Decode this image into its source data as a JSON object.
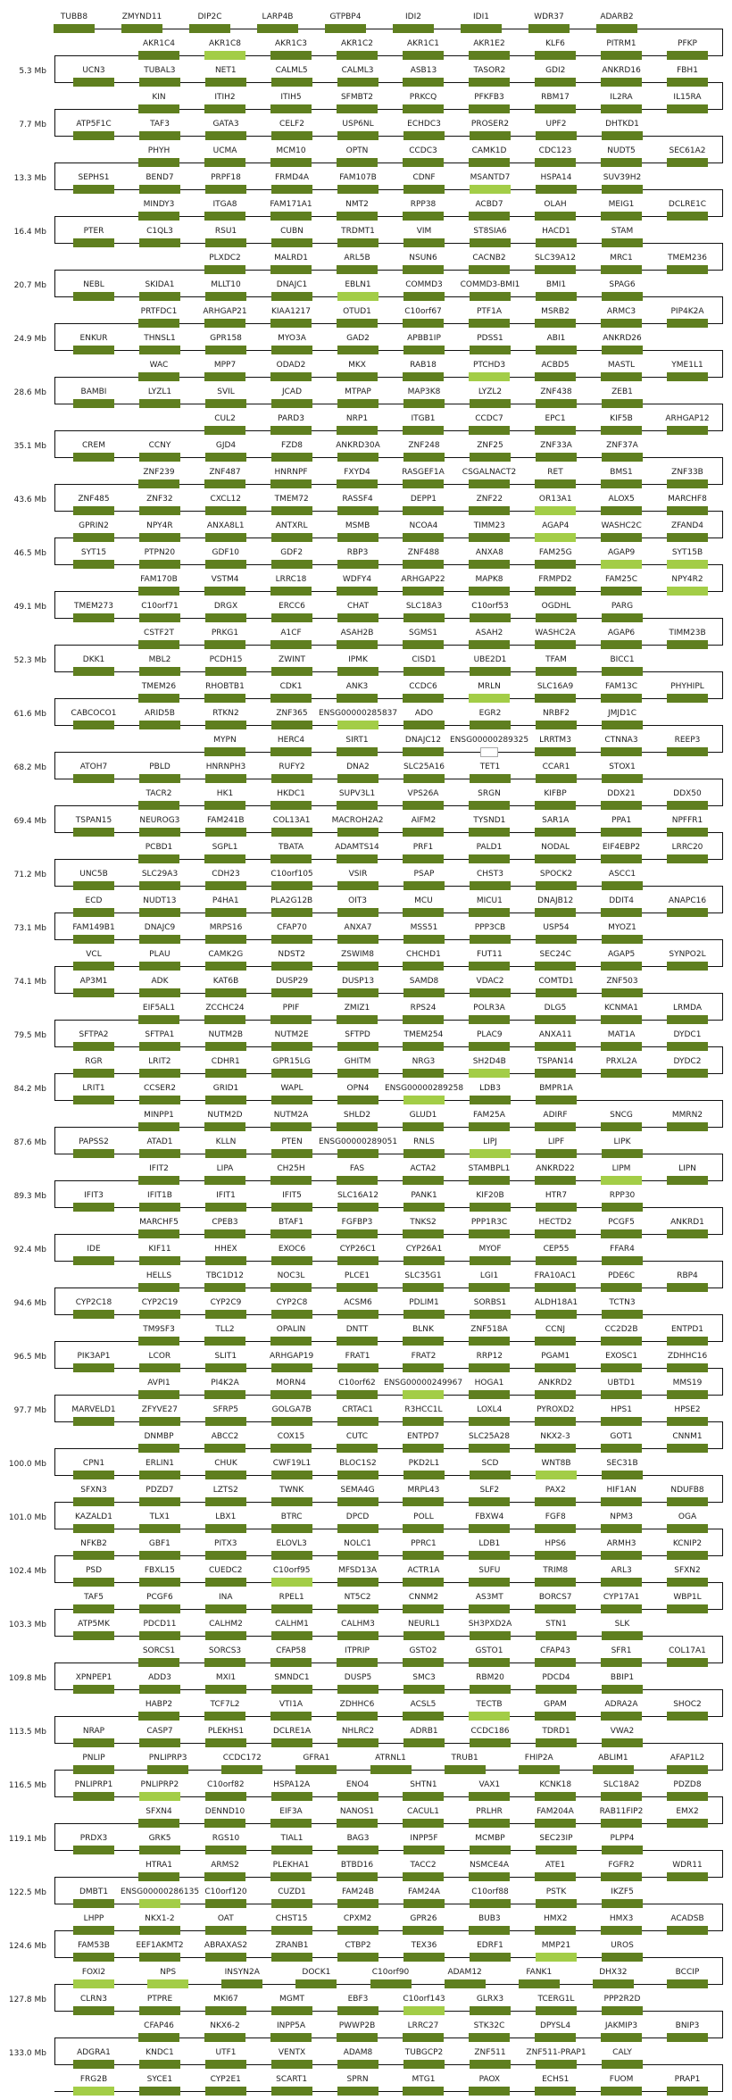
{
  "colors": {
    "gene": "#5f7f1f",
    "highlight": "#a3cd47",
    "unfilled_border": "#aaaaaa",
    "line": "#111111"
  },
  "highlighted": [
    "AKR1C8",
    "MSANTD7",
    "EBLN1",
    "PTCHD3",
    "OR13A1",
    "AGAP4",
    "AGAP9",
    "SYT15B",
    "NPY4R2",
    "MRLN",
    "ENSG00000285837",
    "SH2D4B",
    "ENSG00000289258",
    "LIPJ",
    "LIPM",
    "ENSG00000249967",
    "WNT8B",
    "C10orf95",
    "TECTB",
    "PNLIPRP2",
    "ENSG00000286135",
    "MMP21",
    "FOXI2",
    "NPS",
    "C10orf143",
    "FRG2B"
  ],
  "unfilled": [
    "ENSG00000289325"
  ],
  "rows": [
    {
      "genes": [
        "TUBB8",
        "ZMYND11",
        "DIP2C",
        "LARP4B",
        "GTPBP4",
        "IDI2",
        "IDI1",
        "WDR37",
        "ADARB2"
      ]
    },
    {
      "genes": [
        "AKR1C4",
        "AKR1C8",
        "AKR1C3",
        "AKR1C2",
        "AKR1C1",
        "AKR1E2",
        "KLF6",
        "PITRM1",
        "PFKP"
      ]
    },
    {
      "mb": "5.3 Mb",
      "genes": [
        "UCN3",
        "TUBAL3",
        "NET1",
        "CALML5",
        "CALML3",
        "ASB13",
        "TASOR2",
        "GDI2",
        "ANKRD16",
        "FBH1"
      ]
    },
    {
      "genes": [
        "KIN",
        "ITIH2",
        "ITIH5",
        "SFMBT2",
        "PRKCQ",
        "PFKFB3",
        "RBM17",
        "IL2RA",
        "IL15RA"
      ]
    },
    {
      "mb": "7.7 Mb",
      "genes": [
        "ATP5F1C",
        "TAF3",
        "GATA3",
        "CELF2",
        "USP6NL",
        "ECHDC3",
        "PROSER2",
        "UPF2",
        "DHTKD1"
      ]
    },
    {
      "genes": [
        "PHYH",
        "UCMA",
        "MCM10",
        "OPTN",
        "CCDC3",
        "CAMK1D",
        "CDC123",
        "NUDT5",
        "SEC61A2"
      ]
    },
    {
      "mb": "13.3 Mb",
      "genes": [
        "SEPHS1",
        "BEND7",
        "PRPF18",
        "FRMD4A",
        "FAM107B",
        "CDNF",
        "MSANTD7",
        "HSPA14",
        "SUV39H2"
      ]
    },
    {
      "genes": [
        "MINDY3",
        "ITGA8",
        "FAM171A1",
        "NMT2",
        "RPP38",
        "ACBD7",
        "OLAH",
        "MEIG1",
        "DCLRE1C"
      ]
    },
    {
      "mb": "16.4 Mb",
      "genes": [
        "PTER",
        "C1QL3",
        "RSU1",
        "CUBN",
        "TRDMT1",
        "VIM",
        "ST8SIA6",
        "HACD1",
        "STAM"
      ]
    },
    {
      "genes": [
        "PLXDC2",
        "MALRD1",
        "ARL5B",
        "NSUN6",
        "CACNB2",
        "SLC39A12",
        "MRC1",
        "TMEM236"
      ]
    },
    {
      "mb": "20.7 Mb",
      "genes": [
        "NEBL",
        "SKIDA1",
        "MLLT10",
        "DNAJC1",
        "EBLN1",
        "COMMD3",
        "COMMD3-BMI1",
        "BMI1",
        "SPAG6"
      ]
    },
    {
      "genes": [
        "PRTFDC1",
        "ARHGAP21",
        "KIAA1217",
        "OTUD1",
        "C10orf67",
        "PTF1A",
        "MSRB2",
        "ARMC3",
        "PIP4K2A"
      ]
    },
    {
      "mb": "24.9 Mb",
      "genes": [
        "ENKUR",
        "THNSL1",
        "GPR158",
        "MYO3A",
        "GAD2",
        "APBB1IP",
        "PDSS1",
        "ABI1",
        "ANKRD26"
      ]
    },
    {
      "genes": [
        "WAC",
        "MPP7",
        "ODAD2",
        "MKX",
        "RAB18",
        "PTCHD3",
        "ACBD5",
        "MASTL",
        "YME1L1"
      ]
    },
    {
      "mb": "28.6 Mb",
      "genes": [
        "BAMBI",
        "LYZL1",
        "SVIL",
        "JCAD",
        "MTPAP",
        "MAP3K8",
        "LYZL2",
        "ZNF438",
        "ZEB1"
      ]
    },
    {
      "genes": [
        "CUL2",
        "PARD3",
        "NRP1",
        "ITGB1",
        "CCDC7",
        "EPC1",
        "KIF5B",
        "ARHGAP12"
      ]
    },
    {
      "mb": "35.1 Mb",
      "genes": [
        "CREM",
        "CCNY",
        "GJD4",
        "FZD8",
        "ANKRD30A",
        "ZNF248",
        "ZNF25",
        "ZNF33A",
        "ZNF37A"
      ]
    },
    {
      "genes": [
        "ZNF239",
        "ZNF487",
        "HNRNPF",
        "FXYD4",
        "RASGEF1A",
        "CSGALNACT2",
        "RET",
        "BMS1",
        "ZNF33B"
      ]
    },
    {
      "mb": "43.6 Mb",
      "genes": [
        "ZNF485",
        "ZNF32",
        "CXCL12",
        "TMEM72",
        "RASSF4",
        "DEPP1",
        "ZNF22",
        "OR13A1",
        "ALOX5",
        "MARCHF8"
      ]
    },
    {
      "genes": [
        "GPRIN2",
        "NPY4R",
        "ANXA8L1",
        "ANTXRL",
        "MSMB",
        "NCOA4",
        "TIMM23",
        "AGAP4",
        "WASHC2C",
        "ZFAND4"
      ]
    },
    {
      "mb": "46.5 Mb",
      "genes": [
        "SYT15",
        "PTPN20",
        "GDF10",
        "GDF2",
        "RBP3",
        "ZNF488",
        "ANXA8",
        "FAM25G",
        "AGAP9",
        "SYT15B"
      ]
    },
    {
      "genes": [
        "FAM170B",
        "VSTM4",
        "LRRC18",
        "WDFY4",
        "ARHGAP22",
        "MAPK8",
        "FRMPD2",
        "FAM25C",
        "NPY4R2"
      ]
    },
    {
      "mb": "49.1 Mb",
      "genes": [
        "TMEM273",
        "C10orf71",
        "DRGX",
        "ERCC6",
        "CHAT",
        "SLC18A3",
        "C10orf53",
        "OGDHL",
        "PARG"
      ]
    },
    {
      "genes": [
        "CSTF2T",
        "PRKG1",
        "A1CF",
        "ASAH2B",
        "SGMS1",
        "ASAH2",
        "WASHC2A",
        "AGAP6",
        "TIMM23B"
      ]
    },
    {
      "mb": "52.3 Mb",
      "genes": [
        "DKK1",
        "MBL2",
        "PCDH15",
        "ZWINT",
        "IPMK",
        "CISD1",
        "UBE2D1",
        "TFAM",
        "BICC1"
      ]
    },
    {
      "genes": [
        "TMEM26",
        "RHOBTB1",
        "CDK1",
        "ANK3",
        "CCDC6",
        "MRLN",
        "SLC16A9",
        "FAM13C",
        "PHYHIPL"
      ]
    },
    {
      "mb": "61.6 Mb",
      "genes": [
        "CABCOCO1",
        "ARID5B",
        "RTKN2",
        "ZNF365",
        "ENSG00000285837",
        "ADO",
        "EGR2",
        "NRBF2",
        "JMJD1C"
      ]
    },
    {
      "genes": [
        "MYPN",
        "HERC4",
        "SIRT1",
        "DNAJC12",
        "ENSG00000289325",
        "LRRTM3",
        "CTNNA3",
        "REEP3"
      ]
    },
    {
      "mb": "68.2 Mb",
      "genes": [
        "ATOH7",
        "PBLD",
        "HNRNPH3",
        "RUFY2",
        "DNA2",
        "SLC25A16",
        "TET1",
        "CCAR1",
        "STOX1"
      ]
    },
    {
      "genes": [
        "TACR2",
        "HK1",
        "HKDC1",
        "SUPV3L1",
        "VPS26A",
        "SRGN",
        "KIFBP",
        "DDX21",
        "DDX50"
      ]
    },
    {
      "mb": "69.4 Mb",
      "genes": [
        "TSPAN15",
        "NEUROG3",
        "FAM241B",
        "COL13A1",
        "MACROH2A2",
        "AIFM2",
        "TYSND1",
        "SAR1A",
        "PPA1",
        "NPFFR1"
      ]
    },
    {
      "genes": [
        "PCBD1",
        "SGPL1",
        "TBATA",
        "ADAMTS14",
        "PRF1",
        "PALD1",
        "NODAL",
        "EIF4EBP2",
        "LRRC20"
      ]
    },
    {
      "mb": "71.2 Mb",
      "genes": [
        "UNC5B",
        "SLC29A3",
        "CDH23",
        "C10orf105",
        "VSIR",
        "PSAP",
        "CHST3",
        "SPOCK2",
        "ASCC1"
      ]
    },
    {
      "genes": [
        "ECD",
        "NUDT13",
        "P4HA1",
        "PLA2G12B",
        "OIT3",
        "MCU",
        "MICU1",
        "DNAJB12",
        "DDIT4",
        "ANAPC16"
      ]
    },
    {
      "mb": "73.1 Mb",
      "genes": [
        "FAM149B1",
        "DNAJC9",
        "MRPS16",
        "CFAP70",
        "ANXA7",
        "MSS51",
        "PPP3CB",
        "USP54",
        "MYOZ1"
      ]
    },
    {
      "genes": [
        "VCL",
        "PLAU",
        "CAMK2G",
        "NDST2",
        "ZSWIM8",
        "CHCHD1",
        "FUT11",
        "SEC24C",
        "AGAP5",
        "SYNPO2L"
      ]
    },
    {
      "mb": "74.1 Mb",
      "genes": [
        "AP3M1",
        "ADK",
        "KAT6B",
        "DUSP29",
        "DUSP13",
        "SAMD8",
        "VDAC2",
        "COMTD1",
        "ZNF503"
      ]
    },
    {
      "genes": [
        "EIF5AL1",
        "ZCCHC24",
        "PPIF",
        "ZMIZ1",
        "RPS24",
        "POLR3A",
        "DLG5",
        "KCNMA1",
        "LRMDA"
      ]
    },
    {
      "mb": "79.5 Mb",
      "genes": [
        "SFTPA2",
        "SFTPA1",
        "NUTM2B",
        "NUTM2E",
        "SFTPD",
        "TMEM254",
        "PLAC9",
        "ANXA11",
        "MAT1A",
        "DYDC1"
      ]
    },
    {
      "genes": [
        "RGR",
        "LRIT2",
        "CDHR1",
        "GPR15LG",
        "GHITM",
        "NRG3",
        "SH2D4B",
        "TSPAN14",
        "PRXL2A",
        "DYDC2"
      ]
    },
    {
      "mb": "84.2 Mb",
      "genes": [
        "LRIT1",
        "CCSER2",
        "GRID1",
        "WAPL",
        "OPN4",
        "ENSG00000289258",
        "LDB3",
        "BMPR1A"
      ]
    },
    {
      "genes": [
        "MINPP1",
        "NUTM2D",
        "NUTM2A",
        "SHLD2",
        "GLUD1",
        "FAM25A",
        "ADIRF",
        "SNCG",
        "MMRN2"
      ]
    },
    {
      "mb": "87.6 Mb",
      "genes": [
        "PAPSS2",
        "ATAD1",
        "KLLN",
        "PTEN",
        "ENSG00000289051",
        "RNLS",
        "LIPJ",
        "LIPF",
        "LIPK"
      ]
    },
    {
      "genes": [
        "IFIT2",
        "LIPA",
        "CH25H",
        "FAS",
        "ACTA2",
        "STAMBPL1",
        "ANKRD22",
        "LIPM",
        "LIPN"
      ]
    },
    {
      "mb": "89.3 Mb",
      "genes": [
        "IFIT3",
        "IFIT1B",
        "IFIT1",
        "IFIT5",
        "SLC16A12",
        "PANK1",
        "KIF20B",
        "HTR7",
        "RPP30"
      ]
    },
    {
      "genes": [
        "MARCHF5",
        "CPEB3",
        "BTAF1",
        "FGFBP3",
        "TNKS2",
        "PPP1R3C",
        "HECTD2",
        "PCGF5",
        "ANKRD1"
      ]
    },
    {
      "mb": "92.4 Mb",
      "genes": [
        "IDE",
        "KIF11",
        "HHEX",
        "EXOC6",
        "CYP26C1",
        "CYP26A1",
        "MYOF",
        "CEP55",
        "FFAR4"
      ]
    },
    {
      "genes": [
        "HELLS",
        "TBC1D12",
        "NOC3L",
        "PLCE1",
        "SLC35G1",
        "LGI1",
        "FRA10AC1",
        "PDE6C",
        "RBP4"
      ]
    },
    {
      "mb": "94.6 Mb",
      "genes": [
        "CYP2C18",
        "CYP2C19",
        "CYP2C9",
        "CYP2C8",
        "ACSM6",
        "PDLIM1",
        "SORBS1",
        "ALDH18A1",
        "TCTN3"
      ]
    },
    {
      "genes": [
        "TM9SF3",
        "TLL2",
        "OPALIN",
        "DNTT",
        "BLNK",
        "ZNF518A",
        "CCNJ",
        "CC2D2B",
        "ENTPD1"
      ]
    },
    {
      "mb": "96.5 Mb",
      "genes": [
        "PIK3AP1",
        "LCOR",
        "SLIT1",
        "ARHGAP19",
        "FRAT1",
        "FRAT2",
        "RRP12",
        "PGAM1",
        "EXOSC1",
        "ZDHHC16"
      ]
    },
    {
      "genes": [
        "AVPI1",
        "PI4K2A",
        "MORN4",
        "C10orf62",
        "ENSG00000249967",
        "HOGA1",
        "ANKRD2",
        "UBTD1",
        "MMS19"
      ]
    },
    {
      "mb": "97.7 Mb",
      "genes": [
        "MARVELD1",
        "ZFYVE27",
        "SFRP5",
        "GOLGA7B",
        "CRTAC1",
        "R3HCC1L",
        "LOXL4",
        "PYROXD2",
        "HPS1",
        "HPSE2"
      ]
    },
    {
      "genes": [
        "DNMBP",
        "ABCC2",
        "COX15",
        "CUTC",
        "ENTPD7",
        "SLC25A28",
        "NKX2-3",
        "GOT1",
        "CNNM1"
      ]
    },
    {
      "mb": "100.0 Mb",
      "genes": [
        "CPN1",
        "ERLIN1",
        "CHUK",
        "CWF19L1",
        "BLOC1S2",
        "PKD2L1",
        "SCD",
        "WNT8B",
        "SEC31B"
      ]
    },
    {
      "genes": [
        "SFXN3",
        "PDZD7",
        "LZTS2",
        "TWNK",
        "SEMA4G",
        "MRPL43",
        "SLF2",
        "PAX2",
        "HIF1AN",
        "NDUFB8"
      ]
    },
    {
      "mb": "101.0 Mb",
      "genes": [
        "KAZALD1",
        "TLX1",
        "LBX1",
        "BTRC",
        "DPCD",
        "POLL",
        "FBXW4",
        "FGF8",
        "NPM3",
        "OGA"
      ]
    },
    {
      "genes": [
        "NFKB2",
        "GBF1",
        "PITX3",
        "ELOVL3",
        "NOLC1",
        "PPRC1",
        "LDB1",
        "HPS6",
        "ARMH3",
        "KCNIP2"
      ]
    },
    {
      "mb": "102.4 Mb",
      "genes": [
        "PSD",
        "FBXL15",
        "CUEDC2",
        "C10orf95",
        "MFSD13A",
        "ACTR1A",
        "SUFU",
        "TRIM8",
        "ARL3",
        "SFXN2"
      ]
    },
    {
      "genes": [
        "TAF5",
        "PCGF6",
        "INA",
        "RPEL1",
        "NT5C2",
        "CNNM2",
        "AS3MT",
        "BORCS7",
        "CYP17A1",
        "WBP1L"
      ]
    },
    {
      "mb": "103.3 Mb",
      "genes": [
        "ATP5MK",
        "PDCD11",
        "CALHM2",
        "CALHM1",
        "CALHM3",
        "NEURL1",
        "SH3PXD2A",
        "STN1",
        "SLK"
      ]
    },
    {
      "genes": [
        "SORCS1",
        "SORCS3",
        "CFAP58",
        "ITPRIP",
        "GSTO2",
        "GSTO1",
        "CFAP43",
        "SFR1",
        "COL17A1"
      ]
    },
    {
      "mb": "109.8 Mb",
      "genes": [
        "XPNPEP1",
        "ADD3",
        "MXI1",
        "SMNDC1",
        "DUSP5",
        "SMC3",
        "RBM20",
        "PDCD4",
        "BBIP1"
      ]
    },
    {
      "genes": [
        "HABP2",
        "TCF7L2",
        "VTI1A",
        "ZDHHC6",
        "ACSL5",
        "TECTB",
        "GPAM",
        "ADRA2A",
        "SHOC2"
      ]
    },
    {
      "mb": "113.5 Mb",
      "genes": [
        "NRAP",
        "CASP7",
        "PLEKHS1",
        "DCLRE1A",
        "NHLRC2",
        "ADRB1",
        "CCDC186",
        "TDRD1",
        "VWA2"
      ]
    },
    {
      "genes": [
        "PNLIP",
        "PNLIPRP3",
        "CCDC172",
        "GFRA1",
        "ATRNL1",
        "TRUB1",
        "FHIP2A",
        "ABLIM1",
        "AFAP1L2"
      ]
    },
    {
      "mb": "116.5 Mb",
      "genes": [
        "PNLIPRP1",
        "PNLIPRP2",
        "C10orf82",
        "HSPA12A",
        "ENO4",
        "SHTN1",
        "VAX1",
        "KCNK18",
        "SLC18A2",
        "PDZD8"
      ]
    },
    {
      "genes": [
        "SFXN4",
        "DENND10",
        "EIF3A",
        "NANOS1",
        "CACUL1",
        "PRLHR",
        "FAM204A",
        "RAB11FIP2",
        "EMX2"
      ]
    },
    {
      "mb": "119.1 Mb",
      "genes": [
        "PRDX3",
        "GRK5",
        "RGS10",
        "TIAL1",
        "BAG3",
        "INPP5F",
        "MCMBP",
        "SEC23IP",
        "PLPP4"
      ]
    },
    {
      "genes": [
        "HTRA1",
        "ARMS2",
        "PLEKHA1",
        "BTBD16",
        "TACC2",
        "NSMCE4A",
        "ATE1",
        "FGFR2",
        "WDR11"
      ]
    },
    {
      "mb": "122.5 Mb",
      "genes": [
        "DMBT1",
        "ENSG00000286135",
        "C10orf120",
        "CUZD1",
        "FAM24B",
        "FAM24A",
        "C10orf88",
        "PSTK",
        "IKZF5"
      ]
    },
    {
      "genes": [
        "LHPP",
        "NKX1-2",
        "OAT",
        "CHST15",
        "CPXM2",
        "GPR26",
        "BUB3",
        "HMX2",
        "HMX3",
        "ACADSB"
      ]
    },
    {
      "mb": "124.6 Mb",
      "genes": [
        "FAM53B",
        "EEF1AKMT2",
        "ABRAXAS2",
        "ZRANB1",
        "CTBP2",
        "TEX36",
        "EDRF1",
        "MMP21",
        "UROS"
      ]
    },
    {
      "genes": [
        "FOXI2",
        "NPS",
        "INSYN2A",
        "DOCK1",
        "C10orf90",
        "ADAM12",
        "FANK1",
        "DHX32",
        "BCCIP"
      ]
    },
    {
      "mb": "127.8 Mb",
      "genes": [
        "CLRN3",
        "PTPRE",
        "MKI67",
        "MGMT",
        "EBF3",
        "C10orf143",
        "GLRX3",
        "TCERG1L",
        "PPP2R2D"
      ]
    },
    {
      "genes": [
        "CFAP46",
        "NKX6-2",
        "INPP5A",
        "PWWP2B",
        "LRRC27",
        "STK32C",
        "DPYSL4",
        "JAKMIP3",
        "BNIP3"
      ]
    },
    {
      "mb": "133.0 Mb",
      "genes": [
        "ADGRA1",
        "KNDC1",
        "UTF1",
        "VENTX",
        "ADAM8",
        "TUBGCP2",
        "ZNF511",
        "ZNF511-PRAP1",
        "CALY"
      ]
    },
    {
      "genes": [
        "FRG2B",
        "SYCE1",
        "CYP2E1",
        "SCART1",
        "SPRN",
        "MTG1",
        "PAOX",
        "ECHS1",
        "FUOM",
        "PRAP1"
      ]
    }
  ]
}
